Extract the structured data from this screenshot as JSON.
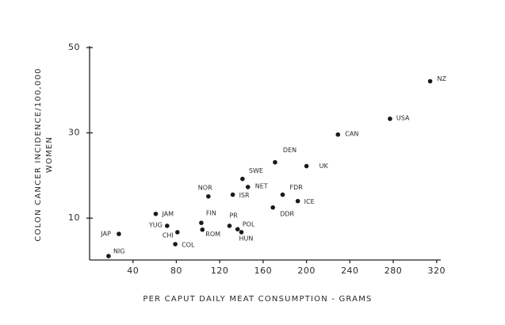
{
  "chart_data": {
    "type": "scatter",
    "ylabel": [
      "COLON CANCER INCIDENCE/100,000",
      "WOMEN"
    ],
    "xlabel": "PER CAPUT DAILY MEAT CONSUMPTION - GRAMS",
    "point_labels": [
      "JAP",
      "NIG",
      "JAM",
      "YUG",
      "CHI",
      "COL",
      "FIN",
      "ROM",
      "NOR",
      "PR",
      "POL",
      "HUN",
      "ISR",
      "SWE",
      "NET",
      "DEN",
      "FDR",
      "DDR",
      "ICE",
      "UK",
      "CAN",
      "USA",
      "NZ"
    ],
    "x": [
      27,
      17.5,
      61,
      71.5,
      81,
      79,
      103,
      104,
      109.5,
      129,
      136.5,
      140,
      132,
      141,
      146,
      171,
      178,
      169,
      192,
      200,
      229,
      277,
      314
    ],
    "values": [
      6.3,
      1.1,
      11,
      8.2,
      6.7,
      3.9,
      8.9,
      7.3,
      15.1,
      8.2,
      7.4,
      6.7,
      15.5,
      19.2,
      17.3,
      23.1,
      15.5,
      12.5,
      14,
      22.2,
      29.6,
      33.3,
      42.1
    ],
    "color": "#1a1a1a",
    "xlim": [
      0,
      325
    ],
    "xticks": [
      40,
      80,
      120,
      160,
      200,
      240,
      280,
      320
    ],
    "ylim": [
      0,
      50
    ],
    "yticks": [
      10,
      30,
      50
    ]
  }
}
